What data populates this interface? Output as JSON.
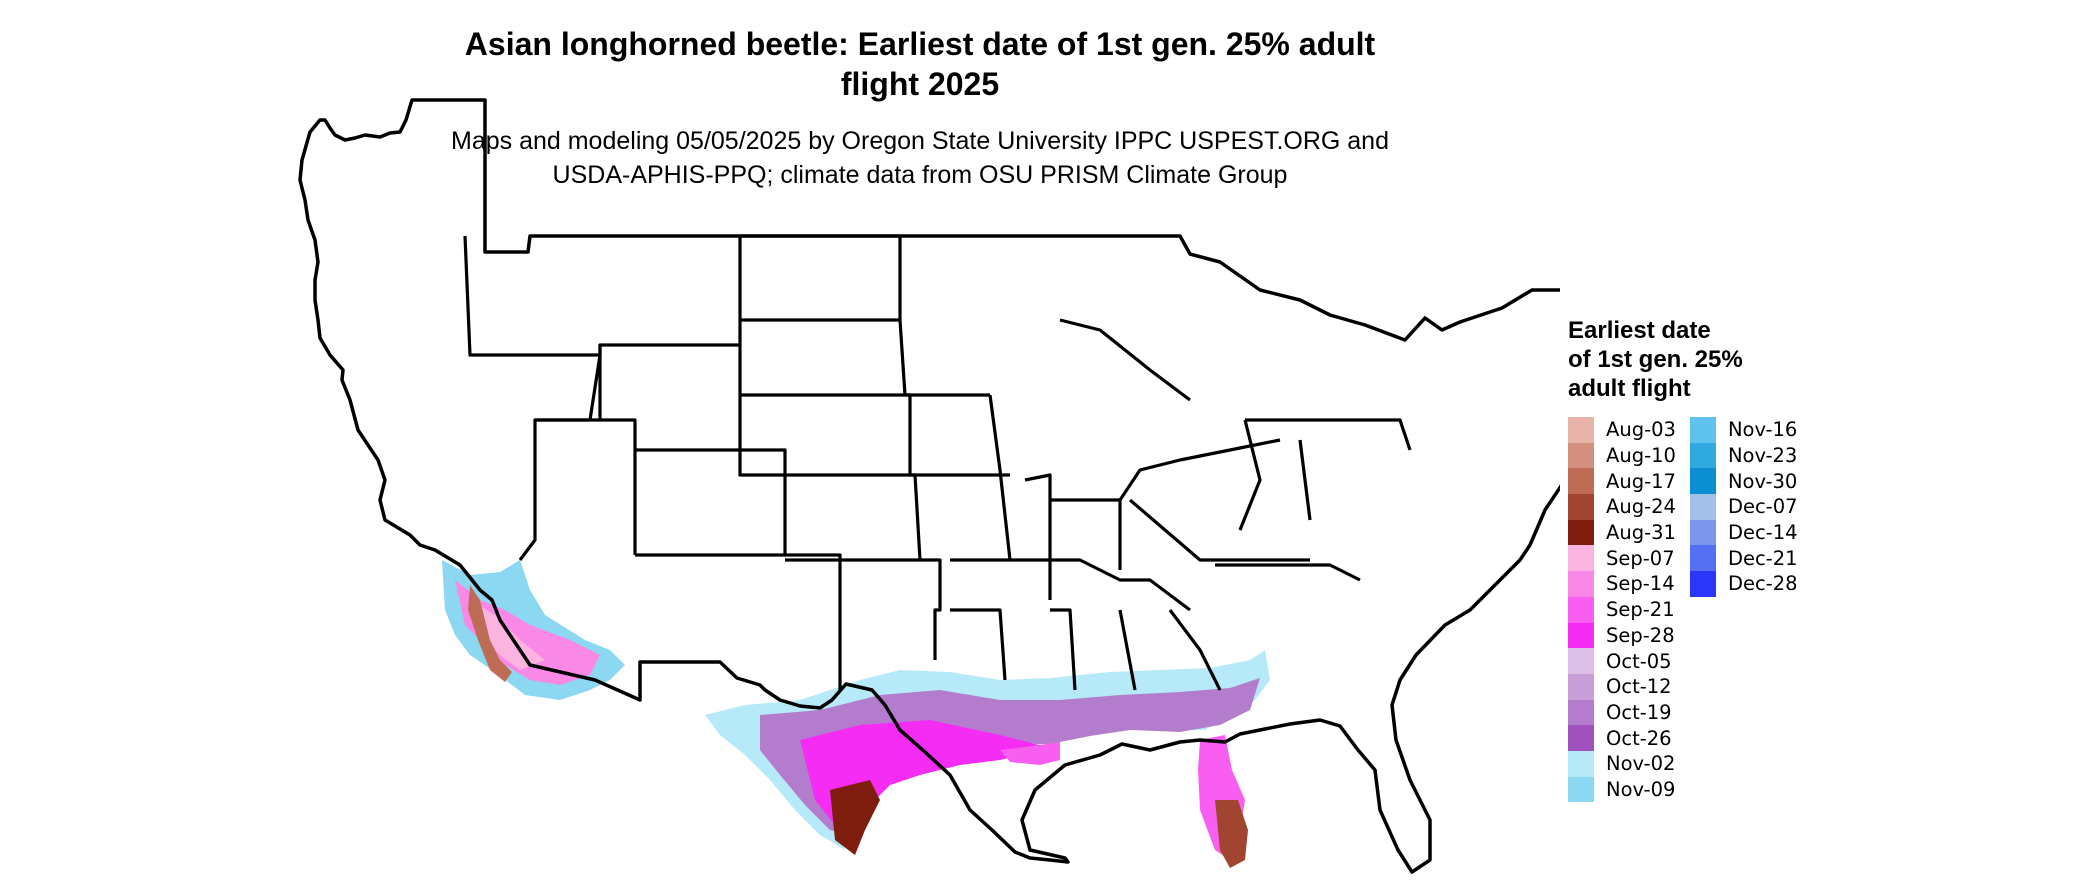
{
  "title_line1": "Asian longhorned beetle: Earliest date of 1st gen. 25% adult",
  "title_line2": "flight 2025",
  "subtitle_line1": "Maps and modeling 05/05/2025 by Oregon State University IPPC USPEST.ORG and",
  "subtitle_line2": "USDA-APHIS-PPQ; climate data from OSU PRISM Climate Group",
  "legend": {
    "title_line1": "Earliest date",
    "title_line2": "of 1st gen. 25%",
    "title_line3": "adult flight",
    "items": [
      {
        "label": "Aug-03",
        "color": "#e8b4aa"
      },
      {
        "label": "Aug-10",
        "color": "#d4907f"
      },
      {
        "label": "Aug-17",
        "color": "#bf6c56"
      },
      {
        "label": "Aug-24",
        "color": "#a24530"
      },
      {
        "label": "Aug-31",
        "color": "#7e1c0e"
      },
      {
        "label": "Sep-07",
        "color": "#fbb4e0"
      },
      {
        "label": "Sep-14",
        "color": "#fa88e6"
      },
      {
        "label": "Sep-21",
        "color": "#f85ef0"
      },
      {
        "label": "Sep-28",
        "color": "#f52cf4"
      },
      {
        "label": "Oct-05",
        "color": "#dcbee6"
      },
      {
        "label": "Oct-12",
        "color": "#c89ed8"
      },
      {
        "label": "Oct-19",
        "color": "#b47ccc"
      },
      {
        "label": "Oct-26",
        "color": "#9f52bc"
      },
      {
        "label": "Nov-02",
        "color": "#b7eaf9"
      },
      {
        "label": "Nov-09",
        "color": "#8cd7f2"
      },
      {
        "label": "Nov-16",
        "color": "#5ec2ec"
      },
      {
        "label": "Nov-23",
        "color": "#30aade"
      },
      {
        "label": "Nov-30",
        "color": "#0b8fd2"
      },
      {
        "label": "Dec-07",
        "color": "#a2c0ea"
      },
      {
        "label": "Dec-14",
        "color": "#7d97ee"
      },
      {
        "label": "Dec-21",
        "color": "#5670f4"
      },
      {
        "label": "Dec-28",
        "color": "#2a36f8"
      }
    ]
  }
}
